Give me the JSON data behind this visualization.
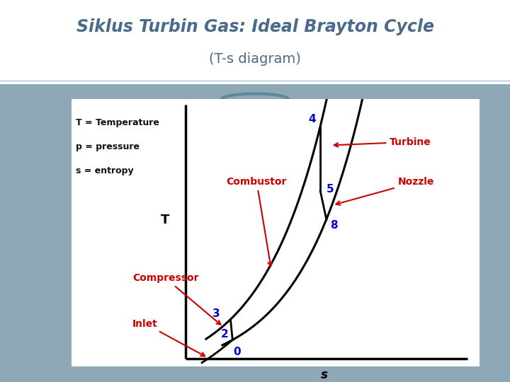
{
  "title_line1": "Siklus Turbin Gas: Ideal Brayton Cycle",
  "title_line2": "(T-s diagram)",
  "title_color": "#4a6b8a",
  "title_bg": "#ffffff",
  "bg_outer": "#8fa8b8",
  "bg_inner": "#ffffff",
  "legend_texts": [
    "T = Temperature",
    "p = pressure",
    "s = entropy"
  ],
  "legend_color": "#111111",
  "axis_label_T": "T",
  "axis_label_s": "s",
  "point_color": "#0000cc",
  "process_color": "#cc0000",
  "curve_color": "#000000",
  "divider_color": "#aabbcc",
  "circle_color": "#5a8a9a"
}
